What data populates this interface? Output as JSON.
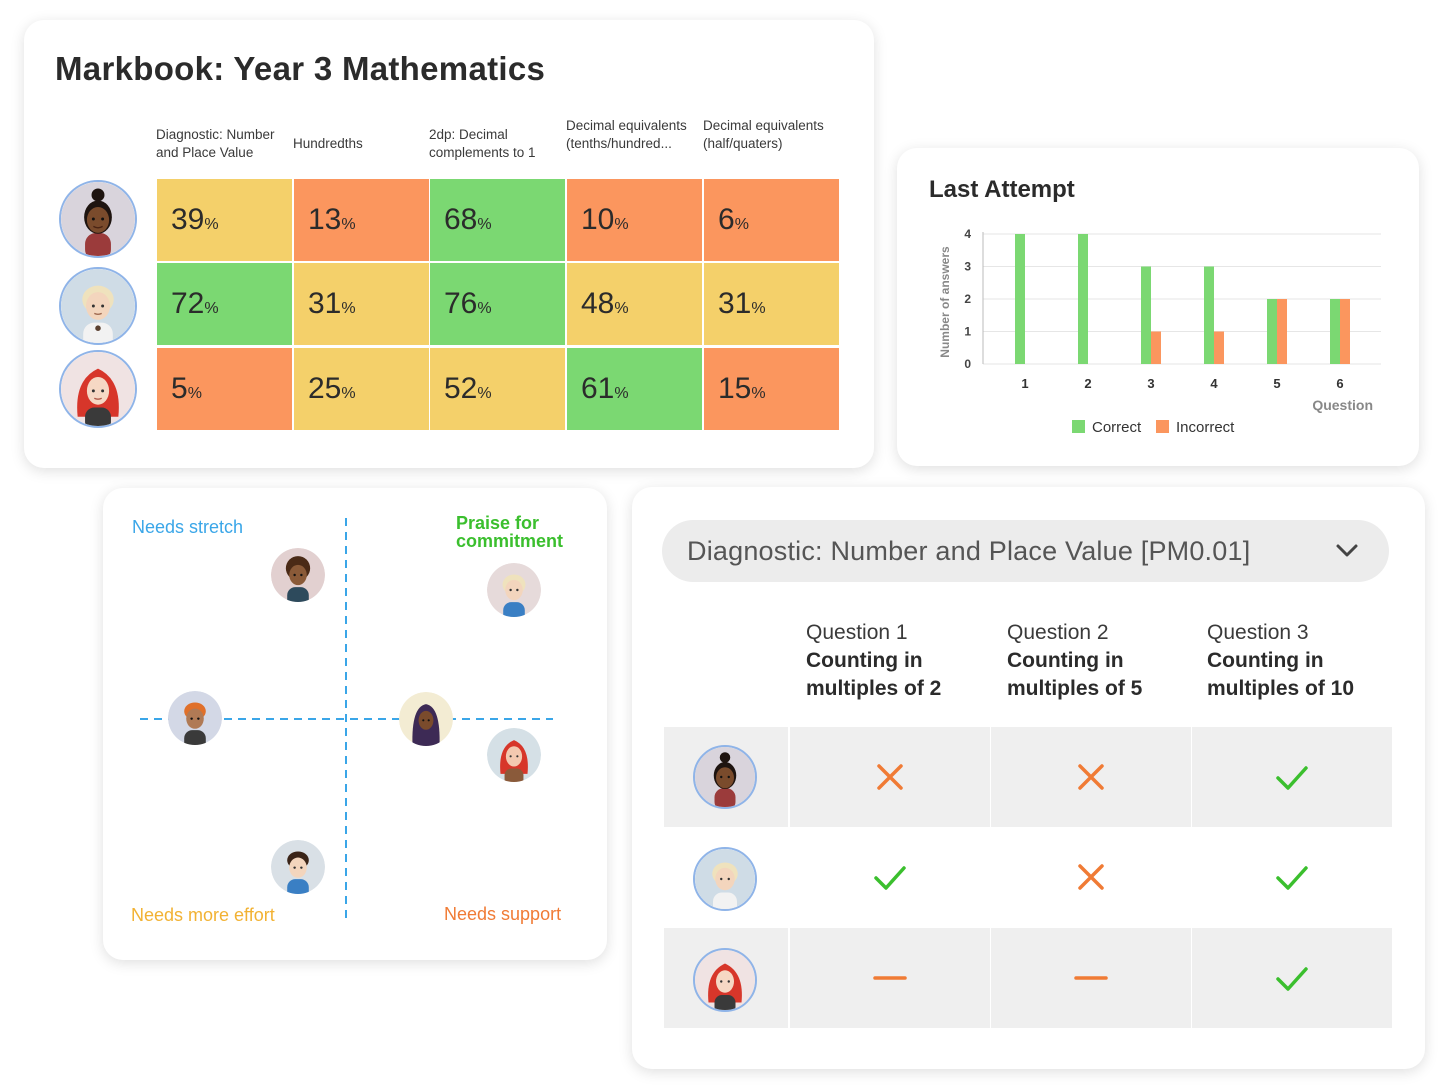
{
  "markbook": {
    "title": "Markbook: Year 3 Mathematics",
    "columns": [
      "Diagnostic: Number and Place Value",
      "Hundredths",
      "2dp: Decimal complements to 1",
      "Decimal equivalents (tenths/hundred...",
      "Decimal equivalents (half/quaters)"
    ],
    "rows": [
      {
        "student": "student-1",
        "cells": [
          {
            "value": "39",
            "unit": "%",
            "status": "yellow"
          },
          {
            "value": "13",
            "unit": "%",
            "status": "orange"
          },
          {
            "value": "68",
            "unit": "%",
            "status": "green"
          },
          {
            "value": "10",
            "unit": "%",
            "status": "orange"
          },
          {
            "value": "6",
            "unit": "%",
            "status": "orange"
          }
        ]
      },
      {
        "student": "student-2",
        "cells": [
          {
            "value": "72",
            "unit": "%",
            "status": "green"
          },
          {
            "value": "31",
            "unit": "%",
            "status": "yellow"
          },
          {
            "value": "76",
            "unit": "%",
            "status": "green"
          },
          {
            "value": "48",
            "unit": "%",
            "status": "yellow"
          },
          {
            "value": "31",
            "unit": "%",
            "status": "yellow"
          }
        ]
      },
      {
        "student": "student-3",
        "cells": [
          {
            "value": "5",
            "unit": "%",
            "status": "orange"
          },
          {
            "value": "25",
            "unit": "%",
            "status": "yellow"
          },
          {
            "value": "52",
            "unit": "%",
            "status": "yellow"
          },
          {
            "value": "61",
            "unit": "%",
            "status": "green"
          },
          {
            "value": "15",
            "unit": "%",
            "status": "orange"
          }
        ]
      }
    ]
  },
  "last_attempt": {
    "title": "Last Attempt"
  },
  "chart_data": {
    "type": "bar",
    "categories": [
      "1",
      "2",
      "3",
      "4",
      "5",
      "6"
    ],
    "series": [
      {
        "name": "Correct",
        "values": [
          4,
          4,
          3,
          3,
          2,
          2
        ],
        "color": "#7bd872"
      },
      {
        "name": "Incorrect",
        "values": [
          0,
          0,
          1,
          1,
          2,
          2
        ],
        "color": "#fb965e"
      }
    ],
    "xlabel": "Question",
    "ylabel": "Number of answers",
    "ylim": [
      0,
      4
    ],
    "yticks": [
      "0",
      "1",
      "2",
      "3",
      "4"
    ],
    "grid": true,
    "legend": "bottom"
  },
  "quadrant": {
    "top_left": "Needs stretch",
    "top_right_line1": "Praise for",
    "top_right_line2": "commitment",
    "bottom_left": "Needs more effort",
    "bottom_right": "Needs support",
    "colors": {
      "stretch": "#3aa6e8",
      "praise": "#3bbf2e",
      "effort": "#f2b233",
      "support": "#f07b35",
      "axis": "#3aa6e8"
    }
  },
  "diagnostic": {
    "select_value": "Diagnostic: Number and Place Value [PM0.01]",
    "questions": [
      {
        "label": "Question 1",
        "line1": "Counting in",
        "line2": "multiples of 2"
      },
      {
        "label": "Question 2",
        "line1": "Counting in",
        "line2": "multiples of 5"
      },
      {
        "label": "Question 3",
        "line1": "Counting in",
        "line2": "multiples of 10"
      }
    ],
    "rows": [
      {
        "student": "student-1",
        "results": [
          "cross",
          "cross",
          "tick"
        ]
      },
      {
        "student": "student-2",
        "results": [
          "tick",
          "cross",
          "tick"
        ]
      },
      {
        "student": "student-3",
        "results": [
          "dash",
          "dash",
          "tick"
        ]
      }
    ]
  }
}
